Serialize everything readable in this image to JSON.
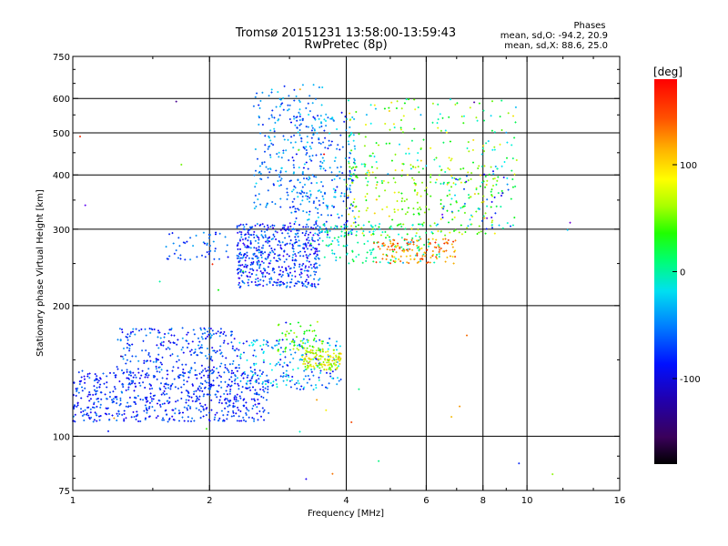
{
  "chart_data": {
    "type": "scatter",
    "title": "Tromsø 20151231 13:58:00-13:59:43",
    "subtitle": "RwPretec (8p)",
    "xlabel": "Frequency [MHz]",
    "ylabel": "Stationary phase Virtual Height [km]",
    "x_scale": "log",
    "y_scale": "log",
    "xlim": [
      1,
      16
    ],
    "ylim": [
      75,
      750
    ],
    "x_ticks": [
      1,
      2,
      4,
      6,
      8,
      10,
      16
    ],
    "y_ticks": [
      75,
      100,
      200,
      300,
      400,
      500,
      600,
      750
    ],
    "x_grid": [
      2,
      4,
      6,
      8,
      10
    ],
    "y_grid": [
      100,
      200,
      300,
      400,
      500,
      600
    ],
    "grid": true,
    "phase_stats": {
      "heading": "Phases",
      "line_o": "mean, sd,O: -94.2, 20.9",
      "line_x": "mean, sd,X:  88.6, 25.0"
    },
    "colorbar": {
      "label": "[deg]",
      "range": [
        -180,
        180
      ],
      "ticks": [
        100,
        0,
        -100
      ],
      "tick_labels": [
        "100",
        "0",
        "-100"
      ],
      "colormap": "rainbow"
    },
    "clusters": [
      {
        "fx": [
          1.0,
          2.7
        ],
        "h": [
          108,
          142
        ],
        "phase": [
          -120,
          -70
        ],
        "n": 650
      },
      {
        "fx": [
          1.25,
          2.3
        ],
        "h": [
          140,
          178
        ],
        "phase": [
          -120,
          -60
        ],
        "n": 240
      },
      {
        "fx": [
          2.3,
          3.9
        ],
        "h": [
          128,
          168
        ],
        "phase": [
          -110,
          -20
        ],
        "n": 200
      },
      {
        "fx": [
          3.2,
          3.9
        ],
        "h": [
          142,
          158
        ],
        "phase": [
          60,
          130
        ],
        "n": 130
      },
      {
        "fx": [
          2.8,
          3.6
        ],
        "h": [
          155,
          185
        ],
        "phase": [
          20,
          100
        ],
        "n": 60
      },
      {
        "fx": [
          1.6,
          2.2
        ],
        "h": [
          255,
          295
        ],
        "phase": [
          -110,
          -60
        ],
        "n": 50
      },
      {
        "fx": [
          2.3,
          3.5
        ],
        "h": [
          220,
          310
        ],
        "phase": [
          -130,
          -60
        ],
        "n": 520
      },
      {
        "fx": [
          3.0,
          4.2
        ],
        "h": [
          290,
          560
        ],
        "phase": [
          -110,
          -40
        ],
        "n": 260
      },
      {
        "fx": [
          2.5,
          3.6
        ],
        "h": [
          330,
          650
        ],
        "phase": [
          -100,
          -40
        ],
        "n": 200
      },
      {
        "fx": [
          3.5,
          6.5
        ],
        "h": [
          250,
          310
        ],
        "phase": [
          -60,
          30
        ],
        "n": 150
      },
      {
        "fx": [
          4.6,
          7.0
        ],
        "h": [
          250,
          285
        ],
        "phase": [
          110,
          170
        ],
        "n": 130
      },
      {
        "fx": [
          4.0,
          8.5
        ],
        "h": [
          290,
          420
        ],
        "phase": [
          30,
          120
        ],
        "n": 200
      },
      {
        "fx": [
          4.0,
          9.5
        ],
        "h": [
          380,
          600
        ],
        "phase": [
          -60,
          120
        ],
        "n": 180
      },
      {
        "fx": [
          6.5,
          9.5
        ],
        "h": [
          300,
          420
        ],
        "phase": [
          -120,
          40
        ],
        "n": 80
      },
      {
        "fx": [
          1.0,
          13.0
        ],
        "h": [
          78,
          650
        ],
        "phase": [
          -180,
          180
        ],
        "n": 40
      }
    ]
  }
}
